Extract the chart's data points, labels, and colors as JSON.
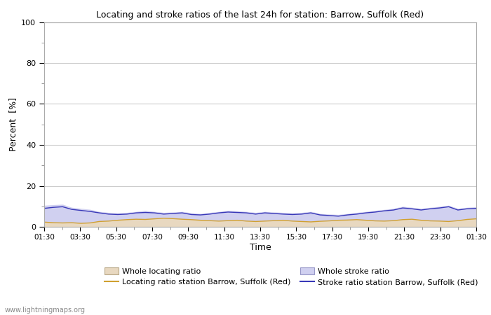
{
  "title": "Locating and stroke ratios of the last 24h for station: Barrow, Suffolk (Red)",
  "xlabel": "Time",
  "ylabel": "Percent  [%]",
  "ylim": [
    0,
    100
  ],
  "yticks": [
    0,
    20,
    40,
    60,
    80,
    100
  ],
  "x_labels": [
    "01:30",
    "03:30",
    "05:30",
    "07:30",
    "09:30",
    "11:30",
    "13:30",
    "15:30",
    "17:30",
    "19:30",
    "21:30",
    "23:30",
    "01:30"
  ],
  "background_color": "#ffffff",
  "plot_bg_color": "#ffffff",
  "grid_color": "#cccccc",
  "watermark": "www.lightningmaps.org",
  "whole_locating_color": "#e8d8c0",
  "whole_stroke_color": "#d0d0f0",
  "locating_line_color": "#d0a030",
  "stroke_line_color": "#3838b8",
  "whole_locating_ratio": [
    2.5,
    2.2,
    2.0,
    2.1,
    1.8,
    2.0,
    2.8,
    3.0,
    3.5,
    3.8,
    4.0,
    3.9,
    4.2,
    4.5,
    4.3,
    4.0,
    3.8,
    3.5,
    3.2,
    3.0,
    3.3,
    3.5,
    3.0,
    2.8,
    3.0,
    3.2,
    3.5,
    3.0,
    2.8,
    2.6,
    2.9,
    3.1,
    3.4,
    3.6,
    3.8,
    3.5,
    3.2,
    3.0,
    3.3,
    3.8,
    4.0,
    3.5,
    3.2,
    3.0,
    2.8,
    3.2,
    3.8,
    4.2
  ],
  "whole_stroke_ratio": [
    10.5,
    10.8,
    11.0,
    9.5,
    9.0,
    8.5,
    7.5,
    7.0,
    6.8,
    7.0,
    7.5,
    8.0,
    7.5,
    7.0,
    7.2,
    7.5,
    6.8,
    6.5,
    7.0,
    7.5,
    8.0,
    7.8,
    7.5,
    7.0,
    7.5,
    7.2,
    7.0,
    6.8,
    7.0,
    7.5,
    6.5,
    6.2,
    6.0,
    6.5,
    7.0,
    7.5,
    8.0,
    8.5,
    9.0,
    10.0,
    9.5,
    9.0,
    9.5,
    10.0,
    10.5,
    9.0,
    9.5,
    9.8
  ],
  "locating_station_ratio": [
    2.3,
    2.0,
    1.9,
    2.0,
    1.7,
    1.9,
    2.6,
    2.8,
    3.2,
    3.5,
    3.7,
    3.6,
    3.9,
    4.2,
    4.0,
    3.7,
    3.5,
    3.2,
    3.0,
    2.8,
    3.0,
    3.2,
    2.8,
    2.6,
    2.8,
    3.0,
    3.2,
    2.8,
    2.6,
    2.4,
    2.7,
    2.9,
    3.2,
    3.3,
    3.5,
    3.2,
    2.9,
    2.8,
    3.0,
    3.5,
    3.7,
    3.2,
    2.9,
    2.8,
    2.6,
    3.0,
    3.6,
    3.9
  ],
  "stroke_station_ratio": [
    9.0,
    9.5,
    9.8,
    8.5,
    8.0,
    7.5,
    6.8,
    6.2,
    6.0,
    6.2,
    6.8,
    7.0,
    6.8,
    6.2,
    6.5,
    6.8,
    6.0,
    5.8,
    6.2,
    6.8,
    7.2,
    7.0,
    6.8,
    6.2,
    6.8,
    6.5,
    6.2,
    6.0,
    6.2,
    6.8,
    5.8,
    5.5,
    5.2,
    5.8,
    6.2,
    6.8,
    7.2,
    7.8,
    8.2,
    9.2,
    8.8,
    8.2,
    8.8,
    9.2,
    9.8,
    8.2,
    8.8,
    9.0
  ]
}
